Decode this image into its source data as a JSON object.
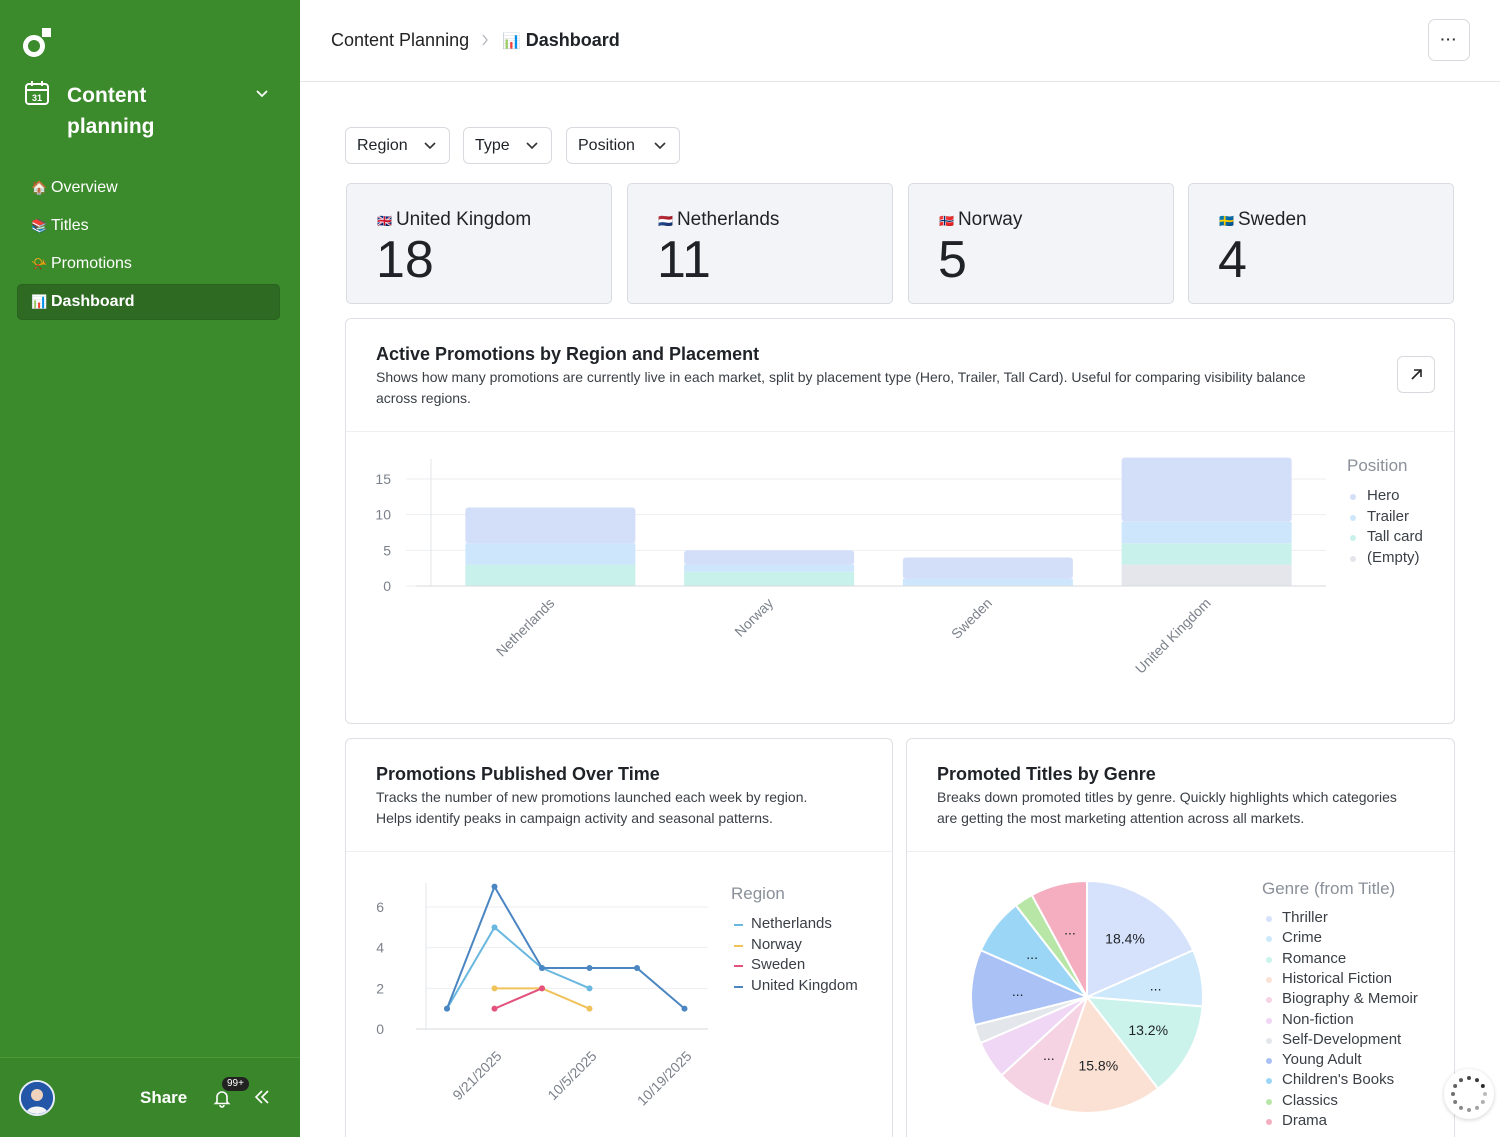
{
  "sidebar": {
    "workspace_title": "Content planning",
    "workspace_icon_day": "31",
    "nav": [
      {
        "emoji": "🏠",
        "label": "Overview",
        "active": false
      },
      {
        "emoji": "📚",
        "label": "Titles",
        "active": false
      },
      {
        "emoji": "📯",
        "label": "Promotions",
        "active": false
      },
      {
        "emoji": "📊",
        "label": "Dashboard",
        "active": true
      }
    ],
    "share_label": "Share",
    "notification_count": "99+"
  },
  "header": {
    "crumb_parent": "Content Planning",
    "crumb_current_emoji": "📊",
    "crumb_current": "Dashboard",
    "more_label": "···"
  },
  "filters": {
    "region": "Region",
    "type": "Type",
    "position": "Position"
  },
  "kpis": [
    {
      "flag": "🇬🇧",
      "label": "United Kingdom",
      "value": "18"
    },
    {
      "flag": "🇳🇱",
      "label": "Netherlands",
      "value": "11"
    },
    {
      "flag": "🇳🇴",
      "label": "Norway",
      "value": "5"
    },
    {
      "flag": "🇸🇪",
      "label": "Sweden",
      "value": "4"
    }
  ],
  "panels": {
    "promotions_by_region": {
      "title": "Active Promotions by Region and Placement",
      "desc_line1": "Shows how many promotions are currently live in each market, split by placement type (Hero, Trailer, Tall Card). Useful for comparing visibility balance",
      "desc_line2": "across regions.",
      "legend_title": "Position"
    },
    "published_over_time": {
      "title": "Promotions Published Over Time",
      "desc_line1": "Tracks the number of new promotions launched each week by region.",
      "desc_line2": "Helps identify peaks in campaign activity and seasonal patterns.",
      "legend_title": "Region"
    },
    "by_genre": {
      "title": "Promoted Titles by Genre",
      "desc_line1": "Breaks down promoted titles by genre. Quickly highlights which categories",
      "desc_line2": "are getting the most marketing attention across all markets.",
      "legend_title": "Genre (from Title)"
    }
  },
  "chart_data": [
    {
      "type": "bar",
      "stacked": true,
      "title": "Active Promotions by Region and Placement",
      "categories": [
        "Netherlands",
        "Norway",
        "Sweden",
        "United Kingdom"
      ],
      "series": [
        {
          "name": "Hero",
          "color": "#d3def8",
          "values": [
            5,
            2,
            3,
            9
          ]
        },
        {
          "name": "Trailer",
          "color": "#cde6fb",
          "values": [
            3,
            1,
            1,
            3
          ]
        },
        {
          "name": "Tall card",
          "color": "#c9f1ec",
          "values": [
            3,
            2,
            0,
            3
          ]
        },
        {
          "name": "(Empty)",
          "color": "#e4e6ec",
          "values": [
            0,
            0,
            0,
            3
          ]
        }
      ],
      "yticks": [
        "0",
        "5",
        "10",
        "15"
      ],
      "ylim": [
        0,
        18
      ]
    },
    {
      "type": "line",
      "title": "Promotions Published Over Time",
      "x": [
        "9/14/2025",
        "9/21/2025",
        "9/28/2025",
        "10/5/2025",
        "10/12/2025",
        "10/19/2025",
        "10/26/2025"
      ],
      "xticks": [
        "9/21/2025",
        "10/5/2025",
        "10/19/2025"
      ],
      "series": [
        {
          "name": "Netherlands",
          "color": "#6ab8df",
          "values": [
            1,
            5,
            3,
            2,
            null,
            null,
            null
          ]
        },
        {
          "name": "Norway",
          "color": "#efc25a",
          "values": [
            null,
            2,
            2,
            1,
            null,
            null,
            null
          ]
        },
        {
          "name": "Sweden",
          "color": "#e2527c",
          "values": [
            null,
            1,
            2,
            null,
            null,
            null,
            null
          ]
        },
        {
          "name": "United Kingdom",
          "color": "#4b86c2",
          "values": [
            1,
            7,
            3,
            3,
            3,
            1,
            null
          ]
        }
      ],
      "yticks": [
        "0",
        "2",
        "4",
        "6"
      ],
      "ylim": [
        0,
        7.5
      ]
    },
    {
      "type": "pie",
      "title": "Promoted Titles by Genre",
      "slices": [
        {
          "name": "Thriller",
          "color": "#d6e2fb",
          "value": 18.4,
          "label": "18.4%"
        },
        {
          "name": "Crime",
          "color": "#cde8fb",
          "value": 7.9,
          "label": "..."
        },
        {
          "name": "Romance",
          "color": "#cbf3ec",
          "value": 13.2,
          "label": "13.2%"
        },
        {
          "name": "Historical Fiction",
          "color": "#fbe1d3",
          "value": 15.8,
          "label": "15.8%"
        },
        {
          "name": "Biography & Memoir",
          "color": "#f6d3e2",
          "value": 7.9,
          "label": "..."
        },
        {
          "name": "Non-fiction",
          "color": "#efd7f5",
          "value": 5.3,
          "label": ""
        },
        {
          "name": "Self-Development",
          "color": "#e3e6ea",
          "value": 2.6,
          "label": ""
        },
        {
          "name": "Young Adult",
          "color": "#a9c1f4",
          "value": 10.5,
          "label": "..."
        },
        {
          "name": "Children's Books",
          "color": "#9cd6f6",
          "value": 7.9,
          "label": "..."
        },
        {
          "name": "Classics",
          "color": "#b8e6a6",
          "value": 2.6,
          "label": ""
        },
        {
          "name": "Drama",
          "color": "#f4aebf",
          "value": 7.9,
          "label": "..."
        }
      ]
    }
  ]
}
